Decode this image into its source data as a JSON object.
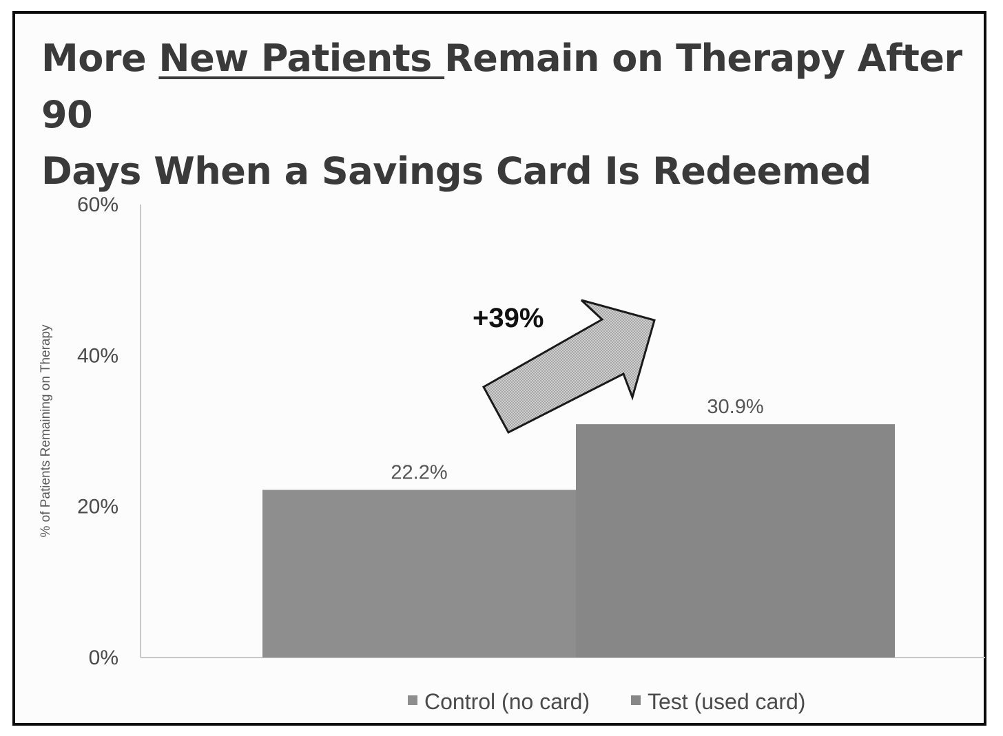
{
  "chart_data": {
    "type": "bar",
    "title_parts": [
      "More ",
      "New Patients ",
      "Remain on Therapy After 90",
      "Days When a Savings Card Is Redeemed"
    ],
    "categories": [
      ""
    ],
    "series": [
      {
        "name": "Control (no card)",
        "values": [
          22.2
        ],
        "label": "22.2%",
        "color": "#8e8e8e"
      },
      {
        "name": "Test (used card)",
        "values": [
          30.9
        ],
        "label": "30.9%",
        "color": "#878787"
      }
    ],
    "ylabel": "% of Patients Remaining on Therapy",
    "ylim": [
      0,
      60
    ],
    "yticks": [
      {
        "value": 0,
        "label": "0%"
      },
      {
        "value": 20,
        "label": "20%"
      },
      {
        "value": 40,
        "label": "40%"
      },
      {
        "value": 60,
        "label": "60%"
      }
    ],
    "annotation": "+39%",
    "grid": false,
    "legend_position": "bottom"
  }
}
